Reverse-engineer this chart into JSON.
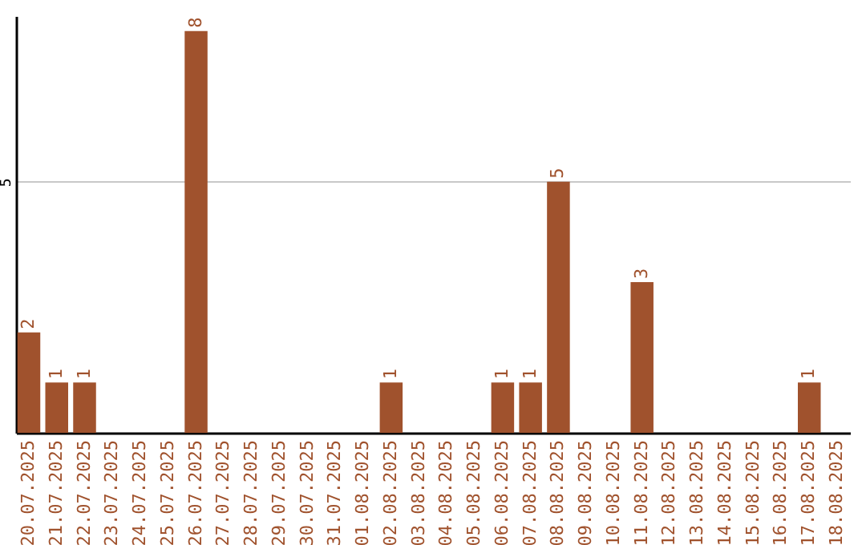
{
  "chart_data": {
    "type": "bar",
    "categories": [
      "20.07.2025",
      "21.07.2025",
      "22.07.2025",
      "23.07.2025",
      "24.07.2025",
      "25.07.2025",
      "26.07.2025",
      "27.07.2025",
      "28.07.2025",
      "29.07.2025",
      "30.07.2025",
      "31.07.2025",
      "01.08.2025",
      "02.08.2025",
      "03.08.2025",
      "04.08.2025",
      "05.08.2025",
      "06.08.2025",
      "07.08.2025",
      "08.08.2025",
      "09.08.2025",
      "10.08.2025",
      "11.08.2025",
      "12.08.2025",
      "13.08.2025",
      "14.08.2025",
      "15.08.2025",
      "16.08.2025",
      "17.08.2025",
      "18.08.2025"
    ],
    "values": [
      2,
      1,
      1,
      0,
      0,
      0,
      8,
      0,
      0,
      0,
      0,
      0,
      0,
      1,
      0,
      0,
      0,
      1,
      1,
      5,
      0,
      0,
      3,
      0,
      0,
      0,
      0,
      0,
      1,
      0
    ],
    "value_labels": [
      "2",
      "1",
      "1",
      null,
      null,
      null,
      "8",
      null,
      null,
      null,
      null,
      null,
      null,
      "1",
      null,
      null,
      null,
      "1",
      "1",
      "5",
      null,
      null,
      "3",
      null,
      null,
      null,
      null,
      null,
      "1",
      null
    ],
    "color": "#a0522d",
    "ylim": [
      0,
      8.3
    ],
    "yticks": [
      5
    ],
    "grid": "y"
  }
}
